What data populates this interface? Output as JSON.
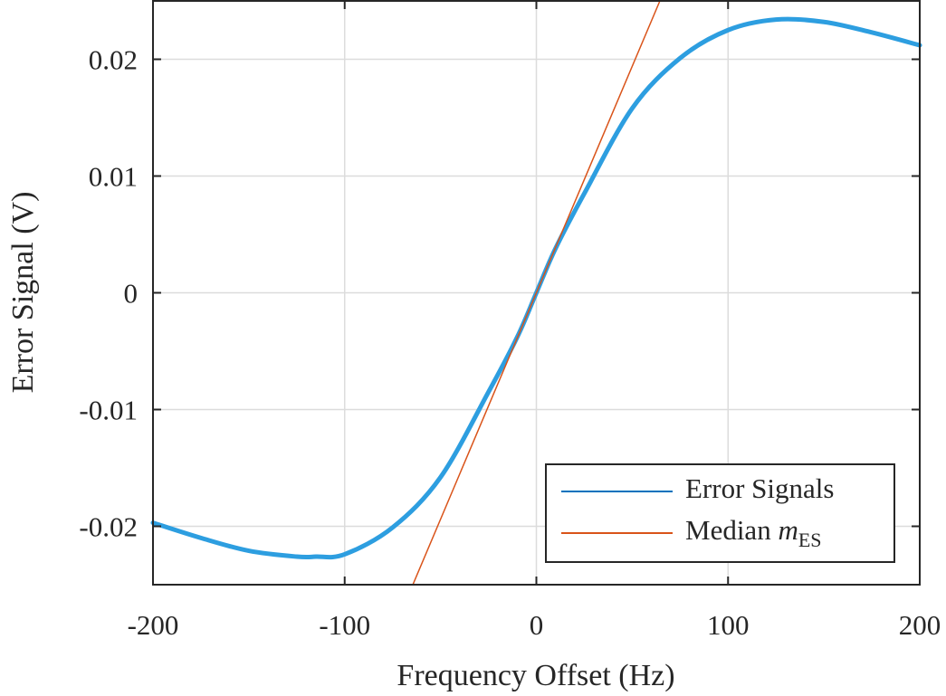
{
  "chart_data": {
    "type": "line",
    "title": "",
    "xlabel": "Frequency Offset (Hz)",
    "ylabel": "Error Signal (V)",
    "xlim": [
      -200,
      200
    ],
    "ylim": [
      -0.025,
      0.025
    ],
    "grid": true,
    "xticks": [
      -200,
      -100,
      0,
      100,
      200
    ],
    "xtick_labels": [
      "-200",
      "-100",
      "0",
      "100",
      "200"
    ],
    "yticks": [
      -0.02,
      -0.01,
      0,
      0.01,
      0.02
    ],
    "ytick_labels": [
      "-0.02",
      "-0.01",
      "0",
      "0.01",
      "0.02"
    ],
    "legend_placement": "bottom-right",
    "series": [
      {
        "name": "Error Signals",
        "color": "#2d9ee0",
        "x": [
          -200,
          -175,
          -150,
          -125,
          -115,
          -100,
          -75,
          -50,
          -25,
          -10,
          0,
          10,
          25,
          50,
          75,
          100,
          125,
          150,
          175,
          200
        ],
        "y": [
          -0.0197,
          -0.021,
          -0.0221,
          -0.0226,
          -0.0226,
          -0.0224,
          -0.0201,
          -0.0158,
          -0.0085,
          -0.0038,
          0,
          0.0038,
          0.0085,
          0.0158,
          0.0201,
          0.0225,
          0.0234,
          0.0232,
          0.0223,
          0.0212
        ]
      },
      {
        "name": "Median",
        "name_math": "m",
        "name_sub": "ES",
        "color": "#d95319",
        "slope": 0.000388,
        "intercept": 0
      }
    ],
    "legend_colors": [
      "#0072bd",
      "#d95319"
    ]
  }
}
